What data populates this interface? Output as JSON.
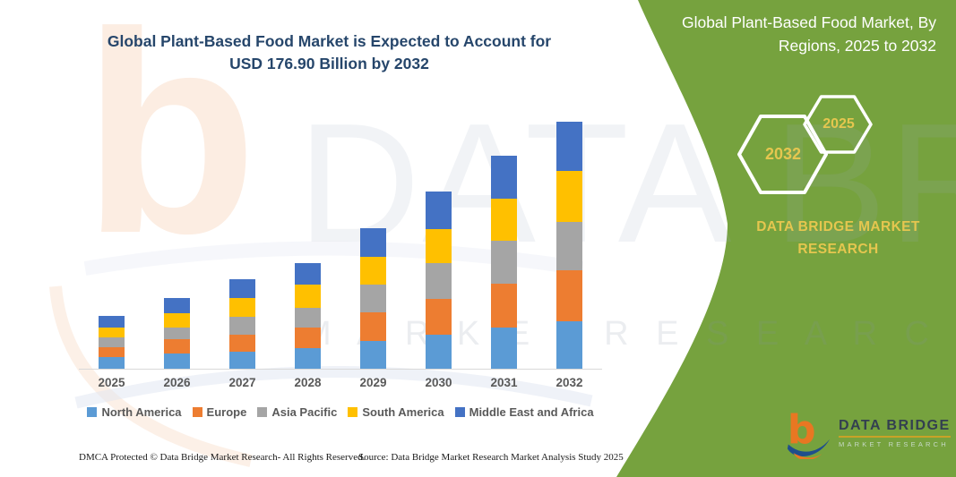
{
  "title": {
    "line1": "Global Plant-Based Food Market is Expected to Account for",
    "line2": "USD 176.90 Billion by 2032"
  },
  "panel": {
    "title_line1": "Global Plant-Based Food Market, By",
    "title_line2": "Regions, 2025 to 2032",
    "hexagon_back_label": "2032",
    "hexagon_front_label": "2025",
    "brand_line1": "DATA BRIDGE MARKET",
    "brand_line2": "RESEARCH",
    "colors": {
      "background": "#76A23E",
      "gold_text": "#E5C64F",
      "hexagon_outline": "#FFFFFF"
    }
  },
  "logo": {
    "monogram": "b",
    "name": "DATA BRIDGE",
    "tagline": "MARKET RESEARCH",
    "colors": {
      "orange": "#E87722",
      "blue": "#1F4E8C"
    }
  },
  "watermark": {
    "monogram": "b",
    "large_text": "DATA BRIDGE",
    "row_text": "M A R K E T   R E S E A R C H"
  },
  "footer": {
    "left": "DMCA Protected © Data Bridge Market Research-  All Rights Reserved.",
    "right": "Source: Data Bridge Market Research  Market Analysis Study 2025"
  },
  "chart_data": {
    "type": "bar",
    "stacked": true,
    "title": "Global Plant-Based Food Market is Expected to Account for USD 176.90 Billion by 2032",
    "xlabel": "",
    "ylabel": "",
    "units": "USD Billion",
    "grid": false,
    "y_axis_visible": false,
    "legend_position": "bottom",
    "ylim": [
      0,
      190
    ],
    "categories": [
      "2025",
      "2026",
      "2027",
      "2028",
      "2029",
      "2030",
      "2031",
      "2032"
    ],
    "series": [
      {
        "name": "North America",
        "color": "#5B9BD5",
        "values": [
          8.3,
          10.9,
          12.2,
          14.7,
          19.9,
          24.4,
          29.5,
          34.1
        ]
      },
      {
        "name": "Europe",
        "color": "#ED7D31",
        "values": [
          7.1,
          10.2,
          12.2,
          14.7,
          20.5,
          25.6,
          31.4,
          36.6
        ]
      },
      {
        "name": "Asia Pacific",
        "color": "#A5A5A5",
        "values": [
          7.1,
          8.3,
          12.8,
          14.1,
          19.9,
          25.6,
          30.8,
          34.7
        ]
      },
      {
        "name": "South America",
        "color": "#FFC000",
        "values": [
          7.1,
          10.2,
          13.4,
          16.7,
          19.9,
          24.4,
          30.1,
          36.6
        ]
      },
      {
        "name": "Middle East and Africa",
        "color": "#4472C4",
        "values": [
          8.3,
          10.9,
          13.4,
          15.4,
          20.5,
          26.9,
          30.8,
          34.9
        ]
      }
    ],
    "totals_estimated": [
      37.9,
      50.5,
      64.0,
      75.6,
      100.7,
      126.9,
      152.6,
      176.9
    ],
    "annotation": "USD 176.90 Billion by 2032"
  }
}
